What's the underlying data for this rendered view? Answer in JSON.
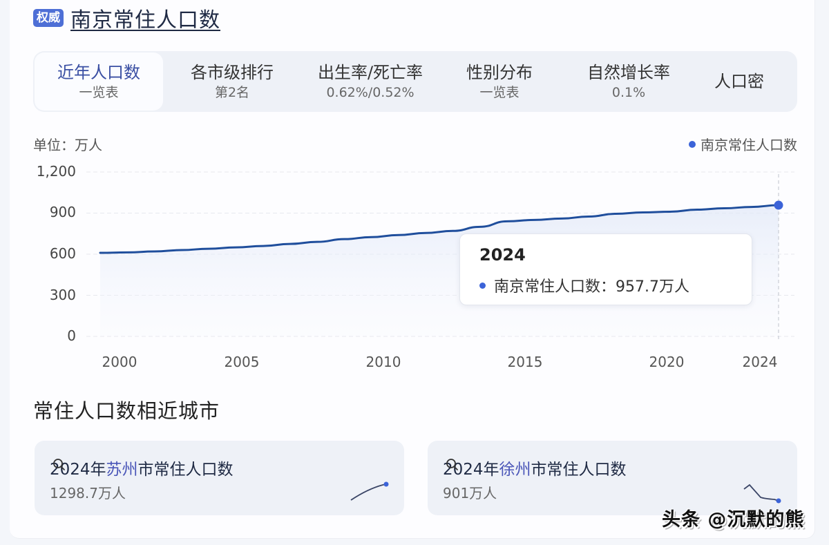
{
  "header": {
    "badge": "权威",
    "title": "南京常住人口数"
  },
  "tabs": [
    {
      "main": "近年人口数",
      "sub": "一览表",
      "active": true
    },
    {
      "main": "各市级排行",
      "sub": "第2名"
    },
    {
      "main": "出生率/死亡率",
      "sub": "0.62%/0.52%"
    },
    {
      "main": "性别分布",
      "sub": "一览表"
    },
    {
      "main": "自然增长率",
      "sub": "0.1%"
    },
    {
      "main": "人口密",
      "sub": ""
    }
  ],
  "chart": {
    "unit_label": "单位：万人",
    "legend_label": "南京常住人口数",
    "line_color": "#1f4e9c",
    "marker_color": "#3b63d8",
    "tooltip": {
      "year": "2024",
      "label": "南京常住人口数：957.7万人"
    }
  },
  "chart_data": {
    "type": "line",
    "title": "南京常住人口数",
    "xlabel": "",
    "ylabel": "单位：万人",
    "x": [
      1999,
      2000,
      2001,
      2002,
      2003,
      2004,
      2005,
      2006,
      2007,
      2008,
      2009,
      2010,
      2011,
      2012,
      2013,
      2014,
      2015,
      2016,
      2017,
      2018,
      2019,
      2020,
      2021,
      2022,
      2023,
      2024
    ],
    "series": [
      {
        "name": "南京常住人口数",
        "values": [
          610,
          613,
          620,
          630,
          640,
          650,
          660,
          675,
          690,
          710,
          725,
          740,
          755,
          770,
          800,
          840,
          850,
          860,
          875,
          895,
          905,
          910,
          925,
          935,
          945,
          957.7
        ]
      }
    ],
    "x_tick_labels": [
      "2000",
      "2005",
      "2010",
      "2015",
      "2020",
      "2024"
    ],
    "y_tick_labels": [
      "1,200",
      "900",
      "600",
      "300",
      "0"
    ],
    "ylim": [
      0,
      1200
    ],
    "grid": true,
    "legend_position": "top-right",
    "annotations": [
      {
        "type": "tooltip",
        "x": 2024,
        "text": "2024 · 南京常住人口数：957.7万人"
      }
    ]
  },
  "similar": {
    "section_title": "常住人口数相近城市",
    "cities": [
      {
        "prefix": "2024年",
        "city": "苏州",
        "suffix": "市常住人口数",
        "value": "1298.7万人",
        "trend": "up"
      },
      {
        "prefix": "2024年",
        "city": "徐州",
        "suffix": "市常住人口数",
        "value": "901万人",
        "trend": "down"
      }
    ]
  },
  "watermark": "头条 @沉默的熊"
}
